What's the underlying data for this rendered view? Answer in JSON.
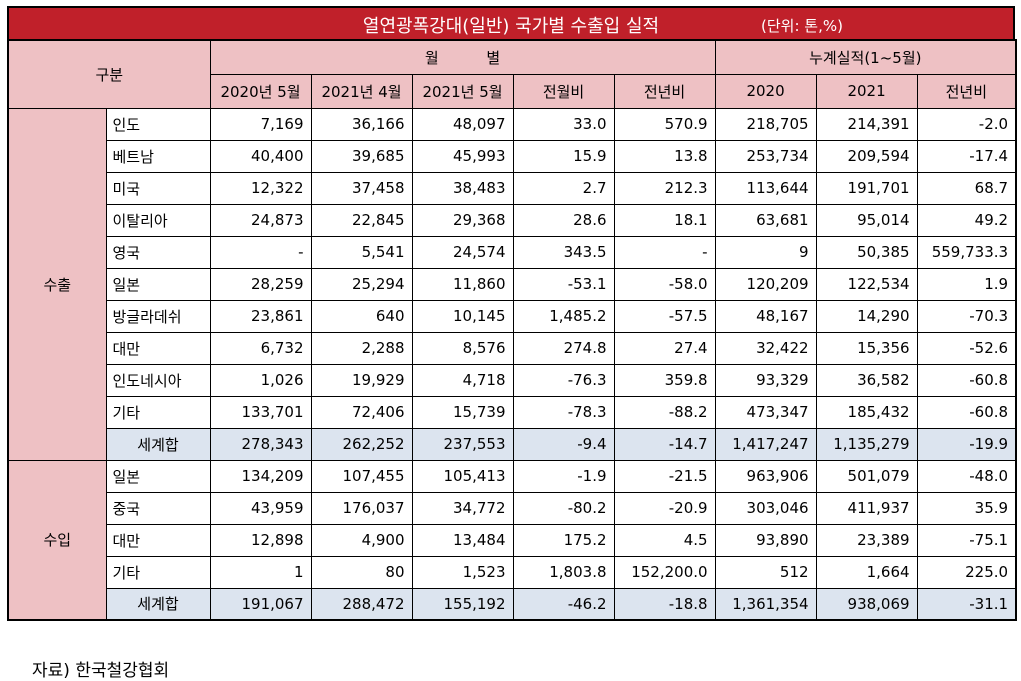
{
  "title": "열연광폭강대(일반) 국가별 수출입 실적",
  "unit": "(단위: 톤,%)",
  "headers": {
    "category": "구분",
    "monthly": "월          별",
    "cumulative": "누계실적(1~5월)",
    "cols": [
      "2020년 5월",
      "2021년 4월",
      "2021년 5월",
      "전월비",
      "전년비",
      "2020",
      "2021",
      "전년비"
    ]
  },
  "export": {
    "label": "수출",
    "rows": [
      {
        "country": "인도",
        "values": [
          "7,169",
          "36,166",
          "48,097",
          "33.0",
          "570.9",
          "218,705",
          "214,391",
          "-2.0"
        ]
      },
      {
        "country": "베트남",
        "values": [
          "40,400",
          "39,685",
          "45,993",
          "15.9",
          "13.8",
          "253,734",
          "209,594",
          "-17.4"
        ]
      },
      {
        "country": "미국",
        "values": [
          "12,322",
          "37,458",
          "38,483",
          "2.7",
          "212.3",
          "113,644",
          "191,701",
          "68.7"
        ]
      },
      {
        "country": "이탈리아",
        "values": [
          "24,873",
          "22,845",
          "29,368",
          "28.6",
          "18.1",
          "63,681",
          "95,014",
          "49.2"
        ]
      },
      {
        "country": "영국",
        "values": [
          "-",
          "5,541",
          "24,574",
          "343.5",
          "-",
          "9",
          "50,385",
          "559,733.3"
        ]
      },
      {
        "country": "일본",
        "values": [
          "28,259",
          "25,294",
          "11,860",
          "-53.1",
          "-58.0",
          "120,209",
          "122,534",
          "1.9"
        ]
      },
      {
        "country": "방글라데쉬",
        "values": [
          "23,861",
          "640",
          "10,145",
          "1,485.2",
          "-57.5",
          "48,167",
          "14,290",
          "-70.3"
        ]
      },
      {
        "country": "대만",
        "values": [
          "6,732",
          "2,288",
          "8,576",
          "274.8",
          "27.4",
          "32,422",
          "15,356",
          "-52.6"
        ]
      },
      {
        "country": "인도네시아",
        "values": [
          "1,026",
          "19,929",
          "4,718",
          "-76.3",
          "359.8",
          "93,329",
          "36,582",
          "-60.8"
        ]
      },
      {
        "country": "기타",
        "values": [
          "133,701",
          "72,406",
          "15,739",
          "-78.3",
          "-88.2",
          "473,347",
          "185,432",
          "-60.8"
        ]
      }
    ],
    "total": {
      "label": "세계합",
      "values": [
        "278,343",
        "262,252",
        "237,553",
        "-9.4",
        "-14.7",
        "1,417,247",
        "1,135,279",
        "-19.9"
      ]
    }
  },
  "import": {
    "label": "수입",
    "rows": [
      {
        "country": "일본",
        "values": [
          "134,209",
          "107,455",
          "105,413",
          "-1.9",
          "-21.5",
          "963,906",
          "501,079",
          "-48.0"
        ]
      },
      {
        "country": "중국",
        "values": [
          "43,959",
          "176,037",
          "34,772",
          "-80.2",
          "-20.9",
          "303,046",
          "411,937",
          "35.9"
        ]
      },
      {
        "country": "대만",
        "values": [
          "12,898",
          "4,900",
          "13,484",
          "175.2",
          "4.5",
          "93,890",
          "23,389",
          "-75.1"
        ]
      },
      {
        "country": "기타",
        "values": [
          "1",
          "80",
          "1,523",
          "1,803.8",
          "152,200.0",
          "512",
          "1,664",
          "225.0"
        ]
      }
    ],
    "total": {
      "label": "세계합",
      "values": [
        "191,067",
        "288,472",
        "155,192",
        "-46.2",
        "-18.8",
        "1,361,354",
        "938,069",
        "-31.1"
      ]
    }
  },
  "source": "자료) 한국철강협회",
  "colors": {
    "title_bg": "#c0202a",
    "header_bg": "#eec1c4",
    "total_bg": "#dce4ef"
  }
}
